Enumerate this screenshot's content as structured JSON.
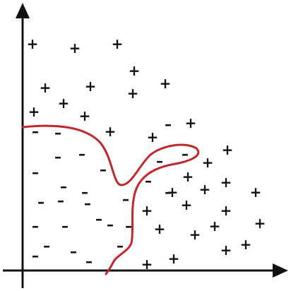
{
  "colors": {
    "axis": "#111111",
    "marks": "#111111",
    "boundary": "#c1272d",
    "background": "#ffffff"
  },
  "diagram": {
    "axes": {
      "x_arrow": true,
      "y_arrow": true
    },
    "boundary": {
      "shape": "closed-curve",
      "color": "boundary"
    },
    "marks": {
      "positive_symbol": "+",
      "negative_symbol": "–"
    }
  }
}
